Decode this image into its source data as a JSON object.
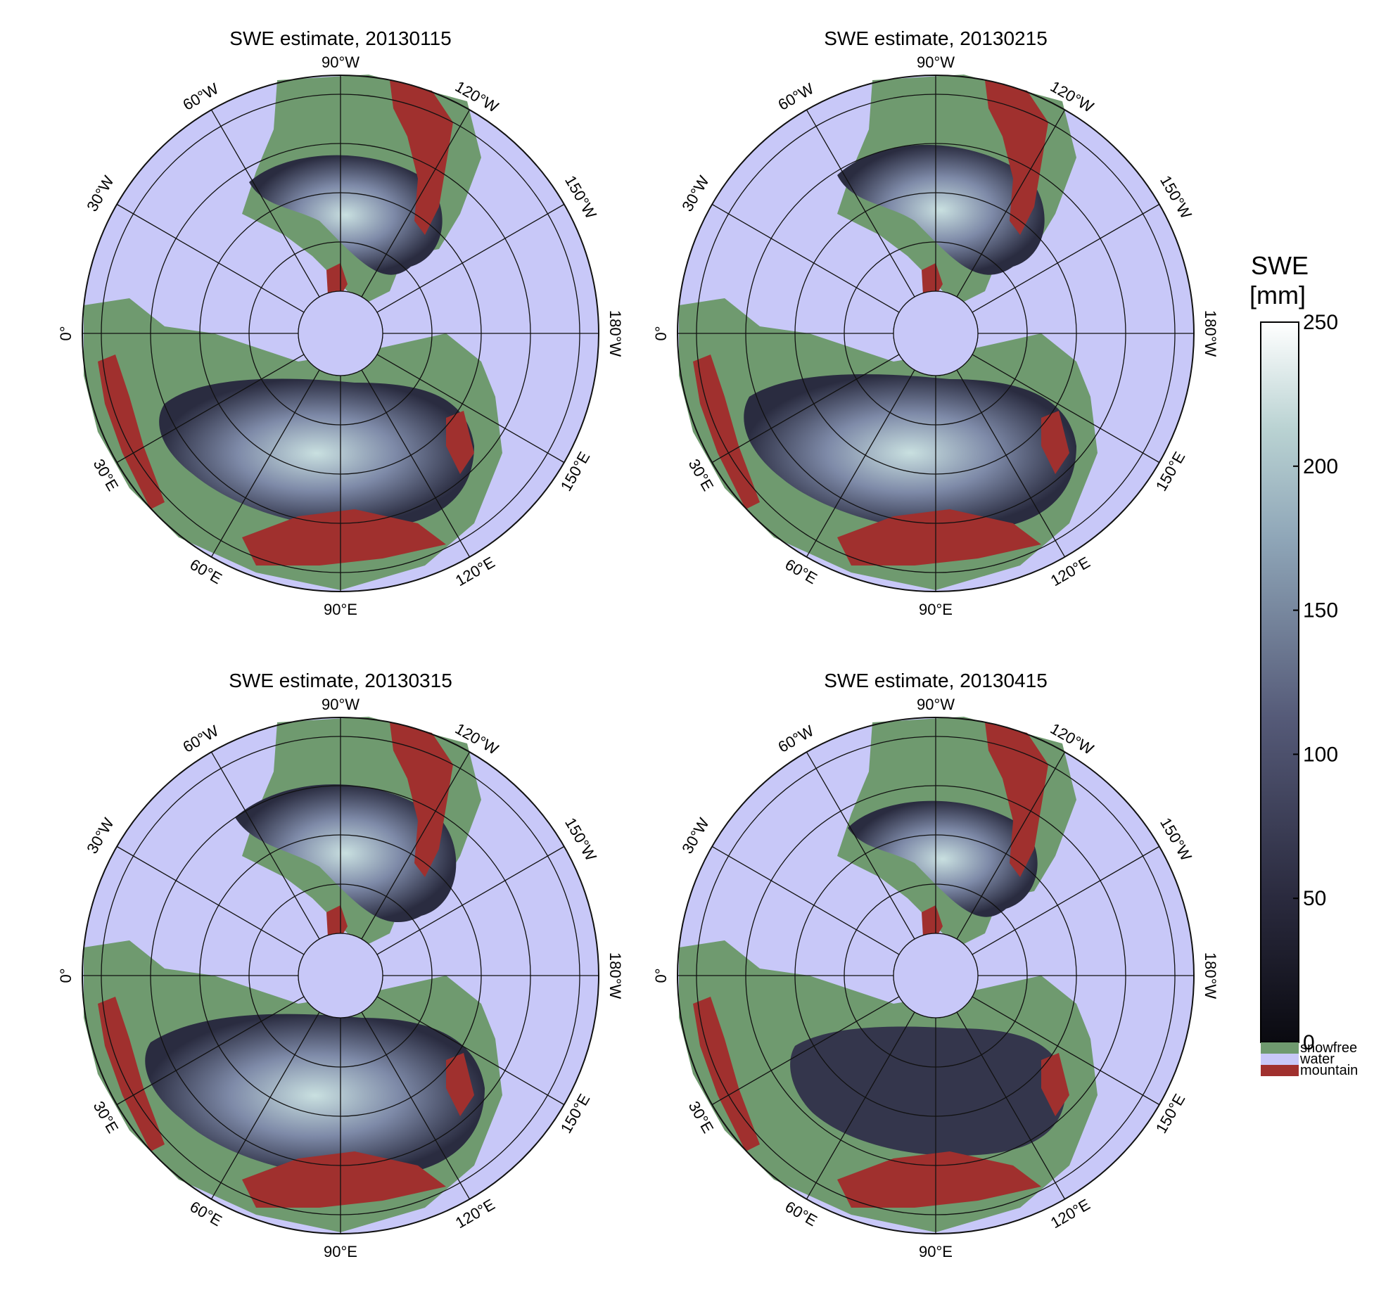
{
  "colors": {
    "water": "#c8c8f8",
    "snowfree": "#6f9a6f",
    "mountain": "#a0302e",
    "snow_low": "#141421",
    "snow_mid": "#4e5272",
    "snow_high": "#9fc4c8",
    "grid": "#111111"
  },
  "maps": [
    {
      "title": "SWE estimate, 20130115",
      "lon_labels": {
        "w90": "90°W",
        "w60": "60°W",
        "w120": "120°W",
        "w30": "30°W",
        "w150": "150°W",
        "zero": "0°",
        "w180": "180°W",
        "e30": "30°E",
        "e150": "150°E",
        "e60": "60°E",
        "e120": "120°E",
        "e90": "90°E"
      },
      "snow_intensity": 0.55
    },
    {
      "title": "SWE estimate, 20130215",
      "lon_labels": {
        "w90": "90°W",
        "w60": "60°W",
        "w120": "120°W",
        "w30": "30°W",
        "w150": "150°W",
        "zero": "0°",
        "w180": "180°W",
        "e30": "30°E",
        "e150": "150°E",
        "e60": "60°E",
        "e120": "120°E",
        "e90": "90°E"
      },
      "snow_intensity": 0.62
    },
    {
      "title": "SWE estimate, 20130315",
      "lon_labels": {
        "w90": "90°W",
        "w60": "60°W",
        "w120": "120°W",
        "w30": "30°W",
        "w150": "150°W",
        "zero": "0°",
        "w180": "180°W",
        "e30": "30°E",
        "e150": "150°E",
        "e60": "60°E",
        "e120": "120°E",
        "e90": "90°E"
      },
      "snow_intensity": 0.72
    },
    {
      "title": "SWE estimate, 20130415",
      "lon_labels": {
        "w90": "90°W",
        "w60": "60°W",
        "w120": "120°W",
        "w30": "30°W",
        "w150": "150°W",
        "zero": "0°",
        "w180": "180°W",
        "e30": "30°E",
        "e150": "150°E",
        "e60": "60°E",
        "e120": "120°E",
        "e90": "90°E"
      },
      "snow_intensity": 0.45
    }
  ],
  "colorbar": {
    "title_line1": "SWE",
    "title_line2": "[mm]",
    "range": [
      0,
      250
    ],
    "ticks": [
      {
        "value": 250,
        "label": "250"
      },
      {
        "value": 200,
        "label": "200"
      },
      {
        "value": 150,
        "label": "150"
      },
      {
        "value": 100,
        "label": "100"
      },
      {
        "value": 50,
        "label": "50"
      },
      {
        "value": 0,
        "label": "0"
      }
    ],
    "categories": [
      {
        "label": "snowfree",
        "color": "#6f9a6f"
      },
      {
        "label": "water",
        "color": "#c8c8f8"
      },
      {
        "label": "mountain",
        "color": "#a0302e"
      }
    ]
  }
}
